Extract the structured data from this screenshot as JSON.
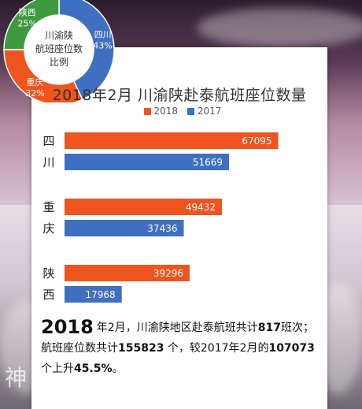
{
  "pie": {
    "center_lines": [
      "川渝陕",
      "航班座位数",
      "比例"
    ],
    "slices": [
      {
        "label": "四川",
        "value": 43,
        "pct_text": "43%",
        "color": "#3f6fc0"
      },
      {
        "label": "重庆",
        "value": 32,
        "pct_text": "32%",
        "color": "#f0541e"
      },
      {
        "label": "陕西",
        "value": 25,
        "pct_text": "25%",
        "color": "#3d9a3e"
      }
    ]
  },
  "chart_data": {
    "type": "bar",
    "orientation": "horizontal",
    "title": "2018年2月 川渝陕赴泰航班座位数量",
    "categories": [
      "四川",
      "重庆",
      "陕西"
    ],
    "category_lines": [
      [
        "四",
        "川"
      ],
      [
        "重",
        "庆"
      ],
      [
        "陕",
        "西"
      ]
    ],
    "series": [
      {
        "name": "2018",
        "color": "#f0541e",
        "values": [
          67095,
          49432,
          39296
        ]
      },
      {
        "name": "2017",
        "color": "#3f6fc0",
        "values": [
          51669,
          37436,
          17968
        ]
      }
    ],
    "xlim": [
      0,
      80000
    ],
    "grid": false,
    "legend_position": "top"
  },
  "summary": {
    "year": "2018",
    "p1": "年2月，川渝陕地区赴泰航班共计",
    "flights": "817",
    "p2": "班次；",
    "p3": "航班座位数共计",
    "seats": "155823",
    "p4": " 个，较2017年2月的",
    "seats_prev": "107073",
    "p5": "个上升",
    "growth": "45.5%",
    "p6": "。"
  },
  "watermark": "神"
}
